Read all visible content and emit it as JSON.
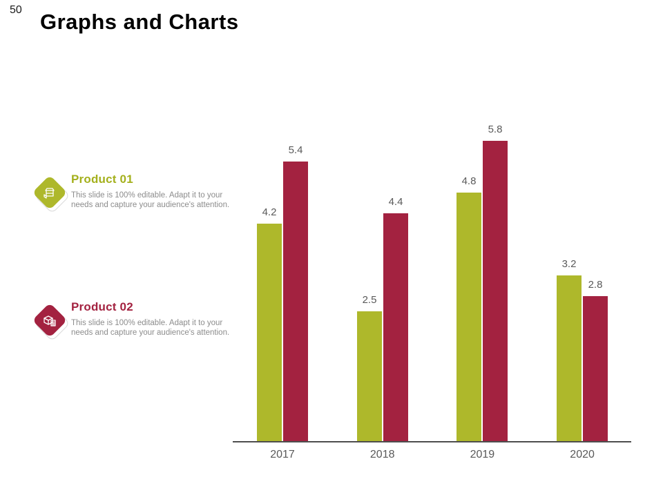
{
  "page": {
    "number": "50",
    "title": "Graphs and Charts"
  },
  "legend": {
    "items": [
      {
        "name": "Product 01",
        "description": "This slide is 100% editable. Adapt it to your needs and capture your audience's attention.",
        "color": "#a4b01c",
        "icon": "open-box-icon"
      },
      {
        "name": "Product 02",
        "description": "This slide is 100% editable. Adapt it to your needs and capture your audience's attention.",
        "color": "#a32240",
        "icon": "stacked-boxes-icon"
      }
    ]
  },
  "chart_data": {
    "type": "bar",
    "title": "",
    "xlabel": "",
    "ylabel": "",
    "categories": [
      "2017",
      "2018",
      "2019",
      "2020"
    ],
    "series": [
      {
        "name": "Product 01",
        "color": "#aeb82b",
        "values": [
          4.2,
          2.5,
          4.8,
          3.2
        ]
      },
      {
        "name": "Product 02",
        "color": "#a32240",
        "values": [
          5.4,
          4.4,
          5.8,
          2.8
        ]
      }
    ],
    "value_labels": true,
    "value_label_color": "#595959",
    "tick_label_color": "#595959",
    "axis_color": "#4d4d4d",
    "ylim": [
      0,
      6.5
    ],
    "grid": false,
    "legend_position": "left"
  }
}
